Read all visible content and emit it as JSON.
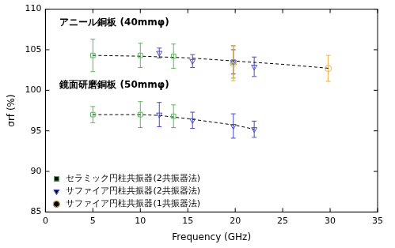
{
  "chart_data": {
    "type": "scatter",
    "x_label": "Frequency (GHz)",
    "y_label": "σrf (%)",
    "xlim": [
      0,
      35
    ],
    "xticks": [
      0,
      5,
      10,
      15,
      20,
      25,
      30,
      35
    ],
    "ylim": [
      85,
      110
    ],
    "yticks": [
      85,
      90,
      95,
      100,
      105,
      110
    ],
    "grid": false,
    "legend": "lower left",
    "annotations": [
      {
        "text": "アニール銅板 (40mmφ)",
        "x": 1.5,
        "y": 108.3
      },
      {
        "text": "鏡面研磨銅板 (50mmφ)",
        "x": 1.5,
        "y": 100.6
      }
    ],
    "series": [
      {
        "name": "セラミック円柱共振器(2共振器法)",
        "color": "#5cb85c",
        "marker": "square",
        "x": [
          5,
          10,
          13.5,
          19.8,
          5,
          10,
          13.5
        ],
        "values": [
          104.3,
          104.3,
          104.2,
          103.5,
          97.0,
          97.0,
          96.8
        ],
        "errors": [
          2.0,
          1.5,
          1.5,
          2.0,
          1.0,
          1.6,
          1.4
        ]
      },
      {
        "name": "サファイア円柱共振器(2共振器法)",
        "color": "#4a4ac8",
        "marker": "triangle_down",
        "x": [
          12,
          15.5,
          19.8,
          22,
          12,
          15.5,
          19.8,
          22
        ],
        "values": [
          104.6,
          103.6,
          103.5,
          102.9,
          97.0,
          96.3,
          95.6,
          95.2
        ],
        "errors": [
          0.6,
          0.8,
          1.5,
          1.2,
          1.5,
          1.0,
          1.5,
          1.0
        ]
      },
      {
        "name": "サファイア円柱共振器(1共振器法)",
        "color": "#f0b040",
        "marker": "circle",
        "x": [
          19.8,
          29.8
        ],
        "values": [
          103.3,
          102.7
        ],
        "errors": [
          2.1,
          1.6
        ]
      },
      {
        "type": "line",
        "line_style": "dashed",
        "color": "#000000",
        "x": [
          5,
          10,
          15,
          20,
          25,
          30
        ],
        "values": [
          104.3,
          104.2,
          104.0,
          103.6,
          103.2,
          102.7
        ]
      },
      {
        "type": "line",
        "line_style": "dashed",
        "color": "#000000",
        "x": [
          5,
          10,
          12,
          15,
          17.5,
          20,
          22
        ],
        "values": [
          97.0,
          97.0,
          96.9,
          96.5,
          96.1,
          95.7,
          95.2
        ]
      }
    ]
  }
}
